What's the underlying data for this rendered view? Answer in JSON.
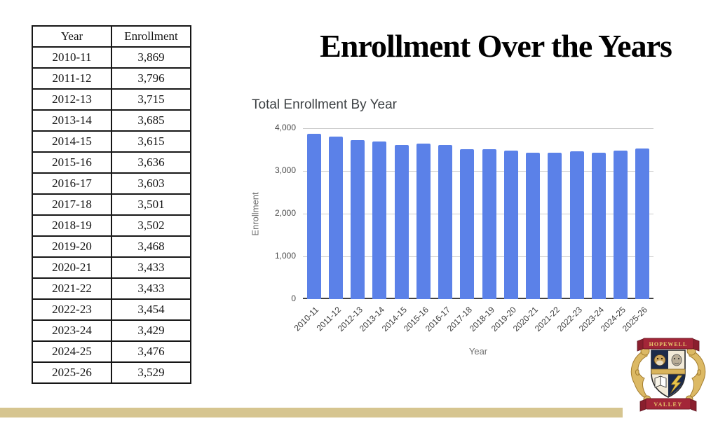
{
  "slide": {
    "title": "Enrollment Over the Years"
  },
  "table": {
    "headers": [
      "Year",
      "Enrollment"
    ],
    "rows": [
      [
        "2010-11",
        "3,869"
      ],
      [
        "2011-12",
        "3,796"
      ],
      [
        "2012-13",
        "3,715"
      ],
      [
        "2013-14",
        "3,685"
      ],
      [
        "2014-15",
        "3,615"
      ],
      [
        "2015-16",
        "3,636"
      ],
      [
        "2016-17",
        "3,603"
      ],
      [
        "2017-18",
        "3,501"
      ],
      [
        "2018-19",
        "3,502"
      ],
      [
        "2019-20",
        "3,468"
      ],
      [
        "2020-21",
        "3,433"
      ],
      [
        "2021-22",
        "3,433"
      ],
      [
        "2022-23",
        "3,454"
      ],
      [
        "2023-24",
        "3,429"
      ],
      [
        "2024-25",
        "3,476"
      ],
      [
        "2025-26",
        "3,529"
      ]
    ]
  },
  "chart_data": {
    "type": "bar",
    "title": "Total Enrollment By Year",
    "xlabel": "Year",
    "ylabel": "Enrollment",
    "categories": [
      "2010-11",
      "2011-12",
      "2012-13",
      "2013-14",
      "2014-15",
      "2015-16",
      "2016-17",
      "2017-18",
      "2018-19",
      "2019-20",
      "2020-21",
      "2021-22",
      "2022-23",
      "2023-24",
      "2024-25",
      "2025-26"
    ],
    "values": [
      3869,
      3796,
      3715,
      3685,
      3615,
      3636,
      3603,
      3501,
      3502,
      3468,
      3433,
      3433,
      3454,
      3429,
      3476,
      3529
    ],
    "ylim": [
      0,
      4000
    ],
    "yticks": [
      "0",
      "1,000",
      "2,000",
      "3,000",
      "4,000"
    ],
    "grid": true,
    "legend": "none",
    "bar_color": "#5b81e8"
  },
  "logo": {
    "top_banner": "HOPEWELL",
    "bottom_banner": "VALLEY"
  },
  "colors": {
    "footer_bar": "#d6c590",
    "bar_blue": "#5b81e8",
    "chart_title_text": "#3c4043",
    "banner_red": "#a32638",
    "crest_gold": "#d9b45c",
    "crest_navy": "#1b2a4a"
  }
}
